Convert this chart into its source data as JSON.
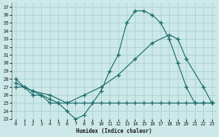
{
  "xlabel": "Humidex (Indice chaleur)",
  "xlim": [
    -0.5,
    23.5
  ],
  "ylim": [
    23,
    37.5
  ],
  "yticks": [
    23,
    24,
    25,
    26,
    27,
    28,
    29,
    30,
    31,
    32,
    33,
    34,
    35,
    36,
    37
  ],
  "xticks": [
    0,
    1,
    2,
    3,
    4,
    5,
    6,
    7,
    8,
    9,
    10,
    11,
    12,
    13,
    14,
    15,
    16,
    17,
    18,
    19,
    20,
    21,
    22,
    23
  ],
  "bg_color": "#cce8e8",
  "grid_color": "#b0d4d4",
  "line_color": "#1a6b6b",
  "line1_x": [
    0,
    1,
    2,
    3,
    4,
    5,
    6,
    7,
    8,
    9,
    10,
    11,
    12,
    13,
    14,
    15,
    16,
    17,
    18,
    19,
    20,
    21,
    22,
    23
  ],
  "line1_y": [
    28,
    27,
    26,
    26,
    25,
    25,
    25,
    25,
    25,
    25,
    25,
    25,
    25,
    25,
    25,
    25,
    25,
    25,
    25,
    25,
    25,
    25,
    25,
    25
  ],
  "line2_x": [
    0,
    1,
    2,
    3,
    4,
    5,
    6,
    7,
    8,
    9,
    10,
    11,
    12,
    13,
    14,
    15,
    16,
    17,
    18,
    19,
    20,
    21,
    22,
    23
  ],
  "line2_y": [
    27,
    27,
    26.5,
    26,
    25.5,
    25,
    24,
    23,
    23.5,
    25,
    26.5,
    29,
    31,
    35,
    36.5,
    36.5,
    36,
    35,
    33,
    30,
    27,
    25,
    25,
    25
  ],
  "line3_x": [
    0,
    2,
    4,
    6,
    8,
    10,
    12,
    14,
    16,
    18,
    19,
    20,
    22,
    23
  ],
  "line3_y": [
    27.5,
    26.5,
    26,
    25,
    26,
    27,
    28.5,
    30.5,
    32.5,
    33.5,
    33,
    30.5,
    27,
    25
  ]
}
